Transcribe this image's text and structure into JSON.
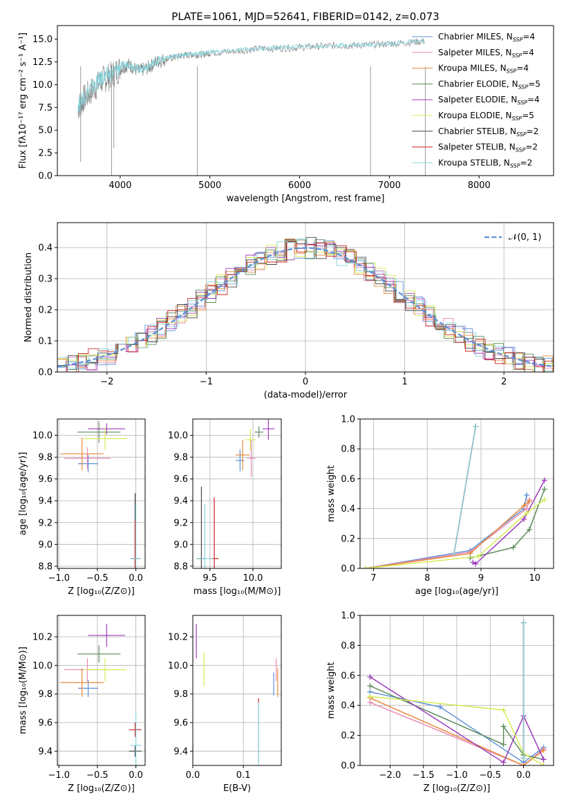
{
  "chart_data": [
    {
      "id": "spectrum",
      "type": "line",
      "title": "PLATE=1061, MJD=52641, FIBERID=0142, z=0.073",
      "xlabel": "wavelength [Angstrom, rest frame]",
      "ylabel": "Flux [fλ10⁻¹⁷ erg cm⁻² s⁻¹ A⁻¹]",
      "xlim": [
        3300,
        8830
      ],
      "ylim": [
        0,
        16.5
      ],
      "xticks": [
        4000,
        5000,
        6000,
        7000,
        8000
      ],
      "yticks": [
        0.0,
        2.5,
        5.0,
        7.5,
        10.0,
        12.5,
        15.0
      ],
      "grid": false,
      "legend_placement": "right",
      "legend": [
        "Chabrier MILES, N_SSP=4",
        "Salpeter MILES, N_SSP=4",
        "Kroupa MILES, N_SSP=4",
        "Chabrier ELODIE, N_SSP=5",
        "Salpeter ELODIE, N_SSP=4",
        "Kroupa ELODIE, N_SSP=5",
        "Chabrier STELIB, N_SSP=2",
        "Salpeter STELIB, N_SSP=2",
        "Kroupa STELIB, N_SSP=2"
      ],
      "series_colors": [
        "#5b8fd6",
        "#e88ab5",
        "#e8883a",
        "#5a8a5a",
        "#9b3aba",
        "#d4ec52",
        "#444444",
        "#cc2222",
        "#88d4dc"
      ],
      "series": [
        {
          "name": "observed",
          "color": "#808080",
          "x": [
            3530,
            3600,
            3700,
            3800,
            3900,
            4000,
            4100,
            4200,
            4300,
            4400,
            4500,
            4600,
            4700,
            4800,
            4900,
            5000,
            5200,
            5400,
            5600,
            5800,
            6000,
            6200,
            6400,
            6600,
            6800,
            7000,
            7200,
            7400
          ],
          "y": [
            7.5,
            8.5,
            9.5,
            10.5,
            11.0,
            11.8,
            12.2,
            11.5,
            11.8,
            12.5,
            12.8,
            13.0,
            13.2,
            13.3,
            13.3,
            13.5,
            13.6,
            13.8,
            14.0,
            14.0,
            14.1,
            14.2,
            14.3,
            14.3,
            14.4,
            14.5,
            14.6,
            14.8
          ]
        },
        {
          "name": "model",
          "color": "#88d4dc",
          "x": [
            3530,
            3600,
            3700,
            3800,
            3900,
            4000,
            4100,
            4200,
            4300,
            4400,
            4500,
            4600,
            4700,
            4800,
            4900,
            5000,
            5200,
            5400,
            5600,
            5800,
            6000,
            6200,
            6400,
            6600,
            6800,
            7000,
            7200,
            7400
          ],
          "y": [
            7.8,
            8.8,
            9.8,
            10.8,
            11.2,
            12.0,
            12.3,
            11.7,
            11.9,
            12.6,
            12.9,
            13.1,
            13.3,
            13.4,
            13.4,
            13.6,
            13.7,
            13.9,
            14.0,
            14.1,
            14.2,
            14.2,
            14.3,
            14.4,
            14.4,
            14.5,
            14.7,
            14.8
          ]
        }
      ]
    },
    {
      "id": "residuals",
      "type": "line",
      "xlabel": "(data-model)/error",
      "ylabel": "Normed distribution",
      "xlim": [
        -2.5,
        2.5
      ],
      "ylim": [
        0,
        0.48
      ],
      "xticks": [
        -2,
        -1,
        0,
        1,
        2
      ],
      "yticks": [
        0.0,
        0.1,
        0.2,
        0.3,
        0.4
      ],
      "grid": true,
      "legend_placement": "top-right",
      "legend": [
        "𝒩(0, 1)"
      ],
      "gaussian": {
        "mu": 0,
        "sigma": 1,
        "color": "#5b8fd6"
      }
    },
    {
      "id": "age-vs-Z",
      "type": "scatter",
      "xlabel": "Z [log₁₀(Z/Z⊙)]",
      "ylabel": "age  [log₁₀(age/yr)]",
      "xlim": [
        -1.02,
        0.12
      ],
      "ylim": [
        8.78,
        10.15
      ],
      "xticks": [
        -1.0,
        -0.5,
        0.0
      ],
      "yticks": [
        8.8,
        9.0,
        9.2,
        9.4,
        9.6,
        9.8,
        10.0
      ],
      "grid": true,
      "points": [
        {
          "x": -0.62,
          "y": 9.74,
          "xerr": 0.13,
          "yerr": 0.08,
          "color": "#5b8fd6"
        },
        {
          "x": -0.63,
          "y": 9.79,
          "xerr": 0.3,
          "yerr": 0.1,
          "color": "#e88ab5"
        },
        {
          "x": -0.7,
          "y": 9.83,
          "xerr": 0.28,
          "yerr": 0.15,
          "color": "#e8883a"
        },
        {
          "x": -0.48,
          "y": 10.03,
          "xerr": 0.28,
          "yerr": 0.1,
          "color": "#5a8a5a"
        },
        {
          "x": -0.38,
          "y": 10.06,
          "xerr": 0.24,
          "yerr": 0.05,
          "color": "#9b3aba"
        },
        {
          "x": -0.4,
          "y": 9.97,
          "xerr": 0.28,
          "yerr": 0.1,
          "color": "#d4ec52"
        },
        {
          "x": -0.01,
          "y": 8.87,
          "xerr": 0.06,
          "yerr": 0.6,
          "color": "#444444"
        },
        {
          "x": -0.01,
          "y": 8.87,
          "xerr": 0.06,
          "yerr": 0.35,
          "color": "#cc2222"
        },
        {
          "x": 0.0,
          "y": 8.87,
          "xerr": 0.07,
          "yerr": 0.5,
          "color": "#88d4dc"
        }
      ]
    },
    {
      "id": "age-vs-mass",
      "type": "scatter",
      "xlabel": "mass [log₁₀(M/M⊙)]",
      "ylabel": "",
      "xlim": [
        9.3,
        10.33
      ],
      "ylim": [
        8.78,
        10.15
      ],
      "xticks": [
        9.5,
        10.0
      ],
      "yticks": [
        8.8,
        9.0,
        9.2,
        9.4,
        9.6,
        9.8,
        10.0
      ],
      "grid": true,
      "points": [
        {
          "x": 9.85,
          "y": 9.77,
          "xerr": 0.05,
          "yerr": 0.1,
          "color": "#5b8fd6"
        },
        {
          "x": 9.98,
          "y": 9.79,
          "xerr": 0.05,
          "yerr": 0.17,
          "color": "#e88ab5"
        },
        {
          "x": 9.88,
          "y": 9.82,
          "xerr": 0.08,
          "yerr": 0.14,
          "color": "#e8883a"
        },
        {
          "x": 10.07,
          "y": 10.03,
          "xerr": 0.05,
          "yerr": 0.05,
          "color": "#5a8a5a"
        },
        {
          "x": 10.18,
          "y": 10.06,
          "xerr": 0.07,
          "yerr": 0.1,
          "color": "#9b3aba"
        },
        {
          "x": 9.97,
          "y": 9.96,
          "xerr": 0.06,
          "yerr": 0.1,
          "color": "#d4ec52"
        },
        {
          "x": 9.4,
          "y": 8.87,
          "xerr": 0.05,
          "yerr": 0.66,
          "color": "#444444"
        },
        {
          "x": 9.55,
          "y": 8.87,
          "xerr": 0.05,
          "yerr": 0.56,
          "color": "#cc2222"
        },
        {
          "x": 9.44,
          "y": 8.87,
          "xerr": 0.1,
          "yerr": 0.5,
          "color": "#88d4dc"
        }
      ]
    },
    {
      "id": "mass-weight-vs-age",
      "type": "line",
      "xlabel": "age  [log₁₀(age/yr)]",
      "ylabel": "mass weight",
      "xlim": [
        6.75,
        10.35
      ],
      "ylim": [
        0,
        1.0
      ],
      "xticks": [
        7,
        8,
        9,
        10
      ],
      "yticks": [
        0.0,
        0.2,
        0.4,
        0.6,
        0.8,
        1.0
      ],
      "grid": true,
      "series": [
        {
          "color": "#5b8fd6",
          "x": [
            6.85,
            8.8,
            9.8,
            9.85
          ],
          "y": [
            0.0,
            0.12,
            0.4,
            0.49
          ]
        },
        {
          "color": "#e88ab5",
          "x": [
            6.85,
            8.8,
            9.85,
            9.9
          ],
          "y": [
            0.0,
            0.11,
            0.4,
            0.46
          ]
        },
        {
          "color": "#e8883a",
          "x": [
            6.85,
            8.8,
            9.8,
            9.9
          ],
          "y": [
            0.0,
            0.1,
            0.42,
            0.45
          ]
        },
        {
          "color": "#5a8a5a",
          "x": [
            8.8,
            9.6,
            9.9,
            10.18
          ],
          "y": [
            0.07,
            0.14,
            0.26,
            0.53
          ]
        },
        {
          "color": "#9b3aba",
          "x": [
            8.85,
            8.9,
            9.8,
            10.18
          ],
          "y": [
            0.04,
            0.03,
            0.33,
            0.59
          ]
        },
        {
          "color": "#d4ec52",
          "x": [
            6.85,
            8.95,
            9.85,
            10.18
          ],
          "y": [
            0.0,
            0.08,
            0.37,
            0.46
          ]
        },
        {
          "color": "#444444",
          "x": [
            8.5,
            8.9
          ],
          "y": [
            0.1,
            0.95
          ]
        },
        {
          "color": "#cc2222",
          "x": [
            8.5,
            8.9
          ],
          "y": [
            0.1,
            0.95
          ]
        },
        {
          "color": "#88d4dc",
          "x": [
            8.5,
            8.9
          ],
          "y": [
            0.1,
            0.95
          ]
        }
      ]
    },
    {
      "id": "mass-vs-Z",
      "type": "scatter",
      "xlabel": "Z [log₁₀(Z/Z⊙)]",
      "ylabel": "mass [log₁₀(M/M⊙)]",
      "xlim": [
        -1.02,
        0.12
      ],
      "ylim": [
        9.3,
        10.35
      ],
      "xticks": [
        -1.0,
        -0.5,
        0.0
      ],
      "yticks": [
        9.4,
        9.6,
        9.8,
        10.0,
        10.2
      ],
      "grid": true,
      "points": [
        {
          "x": -0.62,
          "y": 9.84,
          "xerr": 0.13,
          "yerr": 0.06,
          "color": "#5b8fd6"
        },
        {
          "x": -0.63,
          "y": 9.97,
          "xerr": 0.3,
          "yerr": 0.08,
          "color": "#e88ab5"
        },
        {
          "x": -0.7,
          "y": 9.88,
          "xerr": 0.28,
          "yerr": 0.1,
          "color": "#e8883a"
        },
        {
          "x": -0.48,
          "y": 10.08,
          "xerr": 0.28,
          "yerr": 0.06,
          "color": "#5a8a5a"
        },
        {
          "x": -0.38,
          "y": 10.21,
          "xerr": 0.24,
          "yerr": 0.08,
          "color": "#9b3aba"
        },
        {
          "x": -0.4,
          "y": 9.97,
          "xerr": 0.28,
          "yerr": 0.08,
          "color": "#d4ec52"
        },
        {
          "x": -0.01,
          "y": 9.4,
          "xerr": 0.08,
          "yerr": 0.04,
          "color": "#444444"
        },
        {
          "x": -0.01,
          "y": 9.55,
          "xerr": 0.08,
          "yerr": 0.05,
          "color": "#cc2222"
        },
        {
          "x": 0.0,
          "y": 9.44,
          "xerr": 0.07,
          "yerr": 0.24,
          "color": "#88d4dc"
        }
      ]
    },
    {
      "id": "mass-vs-EBV",
      "type": "scatter",
      "xlabel": "E(B-V)",
      "ylabel": "",
      "xlim": [
        0,
        0.175
      ],
      "ylim": [
        9.3,
        10.35
      ],
      "xticks": [
        0.0,
        0.1
      ],
      "yticks": [
        9.4,
        9.6,
        9.8,
        10.0,
        10.2
      ],
      "grid": true,
      "points": [
        {
          "x": 0.16,
          "y": 9.87,
          "xerr": 0,
          "yerr": 0.08,
          "color": "#5b8fd6"
        },
        {
          "x": 0.165,
          "y": 9.97,
          "xerr": 0,
          "yerr": 0.08,
          "color": "#e88ab5"
        },
        {
          "x": 0.168,
          "y": 9.88,
          "xerr": 0,
          "yerr": 0.1,
          "color": "#e8883a"
        },
        {
          "x": 0.0,
          "y": 10.08,
          "xerr": 0,
          "yerr": 0.06,
          "color": "#5a8a5a"
        },
        {
          "x": 0.007,
          "y": 10.17,
          "xerr": 0,
          "yerr": 0.12,
          "color": "#9b3aba"
        },
        {
          "x": 0.022,
          "y": 9.97,
          "xerr": 0,
          "yerr": 0.12,
          "color": "#d4ec52"
        },
        {
          "x": 0.0,
          "y": 9.4,
          "xerr": 0,
          "yerr": 0.05,
          "color": "#444444"
        },
        {
          "x": 0.13,
          "y": 9.55,
          "xerr": 0,
          "yerr": 0.22,
          "color": "#cc2222"
        },
        {
          "x": 0.13,
          "y": 9.44,
          "xerr": 0,
          "yerr": 0.3,
          "color": "#88d4dc"
        }
      ]
    },
    {
      "id": "mass-weight-vs-Z",
      "type": "line",
      "xlabel": "Z [log₁₀(Z/Z⊙)]",
      "ylabel": "mass weight",
      "xlim": [
        -2.45,
        0.45
      ],
      "ylim": [
        0,
        1.0
      ],
      "xticks": [
        -2.0,
        -1.5,
        -1.0,
        -0.5,
        0.0
      ],
      "yticks": [
        0.0,
        0.2,
        0.4,
        0.6,
        0.8,
        1.0
      ],
      "grid": true,
      "series": [
        {
          "color": "#5b8fd6",
          "x": [
            -2.3,
            -1.25,
            0.0,
            0.3
          ],
          "y": [
            0.49,
            0.39,
            0.02,
            0.12
          ]
        },
        {
          "color": "#e88ab5",
          "x": [
            -2.3,
            0.0,
            0.3
          ],
          "y": [
            0.42,
            0.0,
            0.11
          ]
        },
        {
          "color": "#e8883a",
          "x": [
            -2.3,
            0.0,
            0.3
          ],
          "y": [
            0.45,
            0.0,
            0.1
          ]
        },
        {
          "color": "#5a8a5a",
          "x": [
            -2.3,
            -0.3,
            -0.3,
            0.0,
            0.3
          ],
          "y": [
            0.53,
            0.14,
            0.26,
            0.07,
            0.04
          ]
        },
        {
          "color": "#9b3aba",
          "x": [
            -2.3,
            -0.3,
            0.0,
            0.3
          ],
          "y": [
            0.59,
            0.02,
            0.33,
            0.04
          ]
        },
        {
          "color": "#d4ec52",
          "x": [
            -2.3,
            -0.3,
            0.0,
            0.3
          ],
          "y": [
            0.46,
            0.37,
            0.08,
            0.0
          ]
        },
        {
          "color": "#444444",
          "x": [
            0.0,
            0.0
          ],
          "y": [
            0.05,
            0.95
          ]
        },
        {
          "color": "#cc2222",
          "x": [
            0.0,
            0.0
          ],
          "y": [
            0.05,
            0.95
          ]
        },
        {
          "color": "#88d4dc",
          "x": [
            0.0,
            0.0
          ],
          "y": [
            0.05,
            0.95
          ]
        }
      ]
    }
  ]
}
